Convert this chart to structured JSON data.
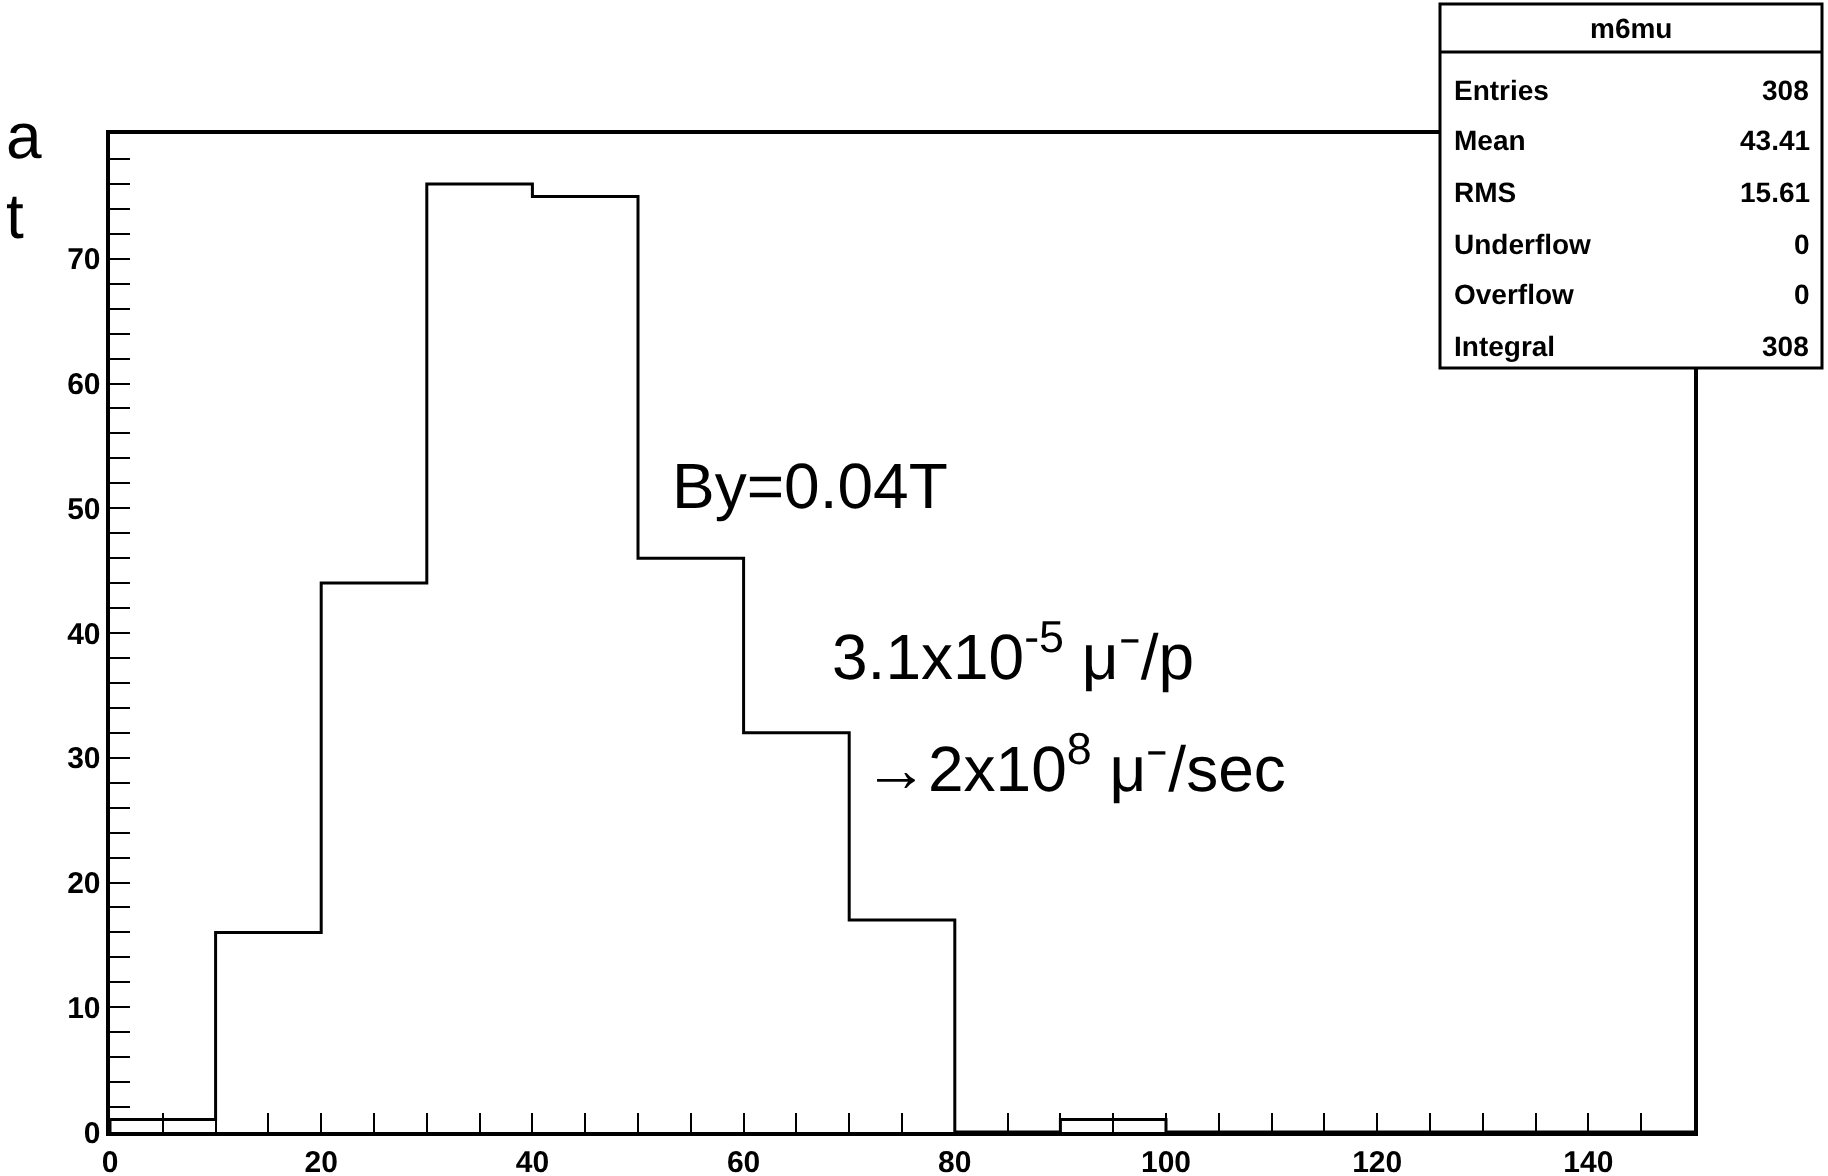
{
  "chart_data": {
    "type": "histogram",
    "bins": [
      0,
      10,
      20,
      30,
      40,
      50,
      60,
      70,
      80,
      90,
      100,
      110,
      120,
      130,
      140,
      150
    ],
    "values": [
      1,
      16,
      44,
      76,
      75,
      46,
      32,
      17,
      0,
      1,
      0,
      0,
      0,
      0,
      0
    ],
    "color": "#000000",
    "xlim": [
      0,
      150
    ],
    "xticks": [
      0,
      {
        "value": 5,
        "label": null
      },
      {
        "value": 10,
        "label": null
      },
      {
        "value": 15,
        "label": null
      },
      20,
      {
        "value": 25,
        "label": null
      },
      {
        "value": 30,
        "label": null
      },
      {
        "value": 35,
        "label": null
      },
      40,
      {
        "value": 45,
        "label": null
      },
      {
        "value": 50,
        "label": null
      },
      {
        "value": 55,
        "label": null
      },
      60,
      {
        "value": 65,
        "label": null
      },
      {
        "value": 70,
        "label": null
      },
      {
        "value": 75,
        "label": null
      },
      80,
      {
        "value": 85,
        "label": null
      },
      {
        "value": 90,
        "label": null
      },
      {
        "value": 95,
        "label": null
      },
      100,
      {
        "value": 105,
        "label": null
      },
      {
        "value": 110,
        "label": null
      },
      {
        "value": 115,
        "label": null
      },
      120,
      {
        "value": 125,
        "label": null
      },
      {
        "value": 130,
        "label": null
      },
      {
        "value": 135,
        "label": null
      },
      140,
      {
        "value": 145,
        "label": null
      }
    ],
    "ylim": [
      0,
      80
    ],
    "yticks": [
      0,
      {
        "value": 2,
        "label": null
      },
      {
        "value": 4,
        "label": null
      },
      {
        "value": 6,
        "label": null
      },
      {
        "value": 8,
        "label": null
      },
      10,
      {
        "value": 12,
        "label": null
      },
      {
        "value": 14,
        "label": null
      },
      {
        "value": 16,
        "label": null
      },
      {
        "value": 18,
        "label": null
      },
      20,
      {
        "value": 22,
        "label": null
      },
      {
        "value": 24,
        "label": null
      },
      {
        "value": 26,
        "label": null
      },
      {
        "value": 28,
        "label": null
      },
      30,
      {
        "value": 32,
        "label": null
      },
      {
        "value": 34,
        "label": null
      },
      {
        "value": 36,
        "label": null
      },
      {
        "value": 38,
        "label": null
      },
      40,
      {
        "value": 42,
        "label": null
      },
      {
        "value": 44,
        "label": null
      },
      {
        "value": 46,
        "label": null
      },
      {
        "value": 48,
        "label": null
      },
      50,
      {
        "value": 52,
        "label": null
      },
      {
        "value": 54,
        "label": null
      },
      {
        "value": 56,
        "label": null
      },
      {
        "value": 58,
        "label": null
      },
      60,
      {
        "value": 62,
        "label": null
      },
      {
        "value": 64,
        "label": null
      },
      {
        "value": 66,
        "label": null
      },
      {
        "value": 68,
        "label": null
      },
      70,
      {
        "value": 72,
        "label": null
      },
      {
        "value": 74,
        "label": null
      },
      {
        "value": 76,
        "label": null
      },
      {
        "value": 78,
        "label": null
      }
    ],
    "annotations": [
      "a",
      "t",
      "m6mu",
      "Entries",
      "308",
      "Mean",
      "43.41",
      "RMS",
      "15.61",
      "Underflow",
      "0",
      "Overflow",
      "0",
      "Integral",
      "308",
      "By=0.04T",
      "3.1x10$^{-5}$ μ⁻/p",
      "→2x10$^{8}$ μ⁻/sec"
    ]
  }
}
